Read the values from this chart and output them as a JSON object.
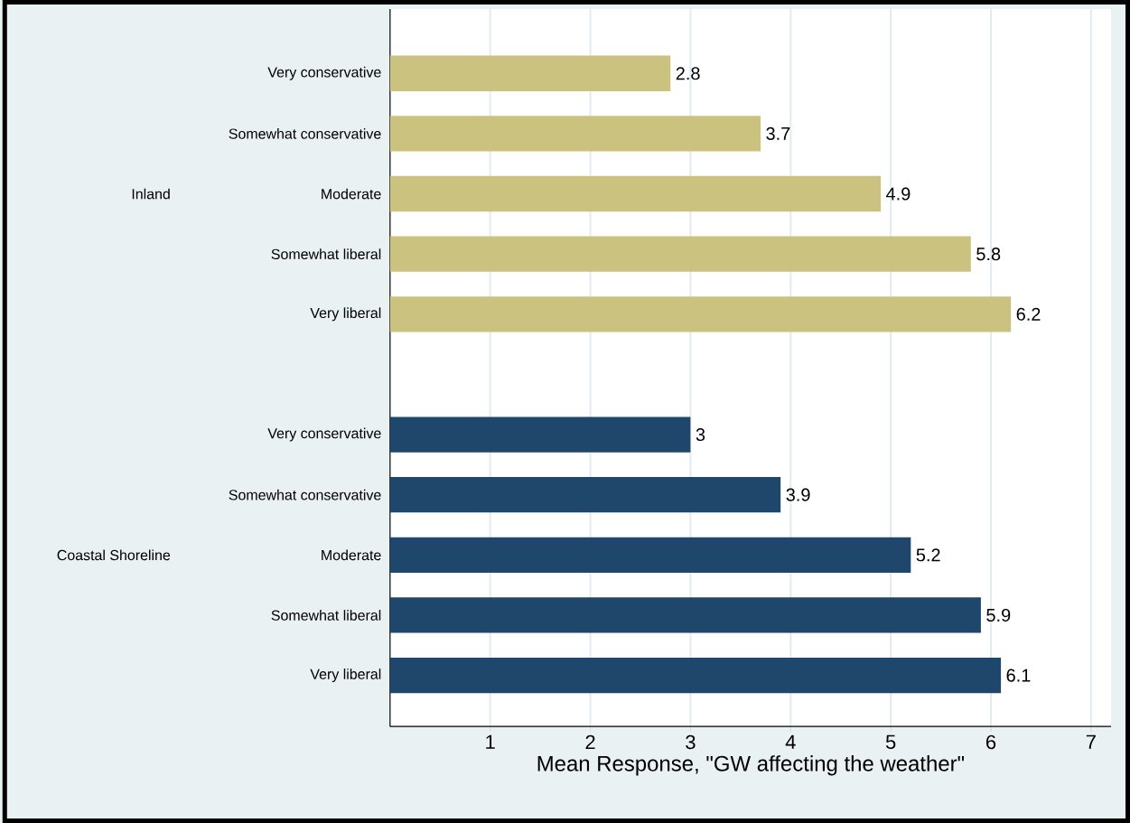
{
  "chart_data": {
    "type": "bar",
    "orientation": "horizontal",
    "xlabel": "Mean Response, \"GW affecting the weather\"",
    "categories": [
      "Very conservative",
      "Somewhat conservative",
      "Moderate",
      "Somewhat liberal",
      "Very liberal",
      null,
      "Very conservative",
      "Somewhat conservative",
      "Moderate",
      "Somewhat liberal",
      "Very liberal"
    ],
    "series": [
      {
        "color": "#ccc27f",
        "values": [
          2.8,
          3.7,
          4.9,
          5.8,
          6.2,
          null,
          null,
          null,
          null,
          null,
          null
        ]
      },
      {
        "color": "#1f476b",
        "values": [
          null,
          null,
          null,
          null,
          null,
          null,
          3,
          3.9,
          5.2,
          5.9,
          6.1
        ]
      }
    ],
    "annotations": [
      "Inland",
      "Coastal Shoreline"
    ],
    "xlim": [
      0,
      7.2
    ],
    "xticks": [
      1,
      2,
      3,
      4,
      5,
      6,
      7
    ],
    "grid": "x",
    "data_labels": true
  }
}
